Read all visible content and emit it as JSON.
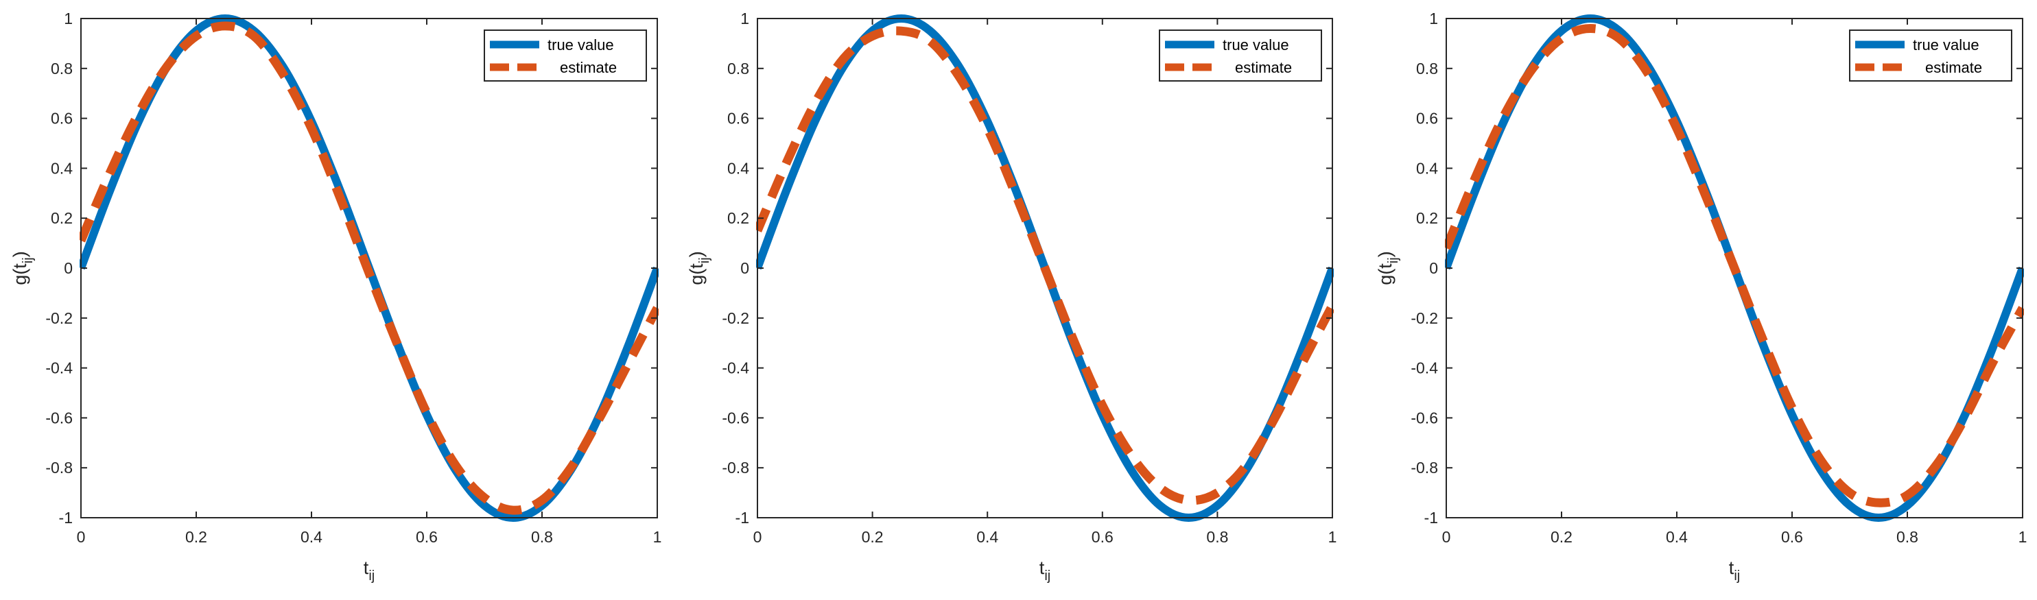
{
  "chart_data": [
    {
      "type": "line",
      "xlabel": {
        "base": "t",
        "sub": "ij"
      },
      "ylabel": {
        "base": "g(t",
        "sub": "ij",
        "close": ")"
      },
      "xlim": [
        0,
        1
      ],
      "ylim": [
        -1,
        1
      ],
      "xticks": [
        0,
        0.2,
        0.4,
        0.6,
        0.8,
        1
      ],
      "yticks": [
        -1,
        -0.8,
        -0.6,
        -0.4,
        -0.2,
        0,
        0.2,
        0.4,
        0.6,
        0.8,
        1
      ],
      "xtick_labels": [
        "0",
        "0.2",
        "0.4",
        "0.6",
        "0.8",
        "1"
      ],
      "ytick_labels": [
        "-1",
        "-0.8",
        "-0.6",
        "-0.4",
        "-0.2",
        "0",
        "0.2",
        "0.4",
        "0.6",
        "0.8",
        "1"
      ],
      "grid": false,
      "legend": "top-right",
      "series": [
        {
          "name": "true value",
          "color": "#0072BD",
          "style": "solid",
          "x": [
            0,
            0.05,
            0.1,
            0.15,
            0.2,
            0.25,
            0.3,
            0.35,
            0.4,
            0.45,
            0.5,
            0.55,
            0.6,
            0.65,
            0.7,
            0.75,
            0.8,
            0.85,
            0.9,
            0.95,
            1
          ],
          "y": [
            0,
            0.309,
            0.588,
            0.809,
            0.951,
            1,
            0.951,
            0.809,
            0.588,
            0.309,
            0,
            -0.309,
            -0.588,
            -0.809,
            -0.951,
            -1,
            -0.951,
            -0.809,
            -0.588,
            -0.309,
            0
          ]
        },
        {
          "name": "estimate",
          "color": "#D95319",
          "style": "dashed",
          "x": [
            0,
            0.05,
            0.1,
            0.15,
            0.2,
            0.25,
            0.3,
            0.35,
            0.4,
            0.45,
            0.5,
            0.55,
            0.6,
            0.65,
            0.7,
            0.75,
            0.8,
            0.85,
            0.9,
            0.95,
            1
          ],
          "y": [
            0.11,
            0.38,
            0.62,
            0.81,
            0.93,
            0.97,
            0.93,
            0.78,
            0.56,
            0.28,
            -0.02,
            -0.31,
            -0.58,
            -0.79,
            -0.92,
            -0.97,
            -0.93,
            -0.8,
            -0.6,
            -0.38,
            -0.16
          ]
        }
      ]
    },
    {
      "type": "line",
      "xlabel": {
        "base": "t",
        "sub": "ij"
      },
      "ylabel": {
        "base": "g(t",
        "sub": "ij",
        "close": ")"
      },
      "xlim": [
        0,
        1
      ],
      "ylim": [
        -1,
        1
      ],
      "xticks": [
        0,
        0.2,
        0.4,
        0.6,
        0.8,
        1
      ],
      "yticks": [
        -1,
        -0.8,
        -0.6,
        -0.4,
        -0.2,
        0,
        0.2,
        0.4,
        0.6,
        0.8,
        1
      ],
      "xtick_labels": [
        "0",
        "0.2",
        "0.4",
        "0.6",
        "0.8",
        "1"
      ],
      "ytick_labels": [
        "-1",
        "-0.8",
        "-0.6",
        "-0.4",
        "-0.2",
        "0",
        "0.2",
        "0.4",
        "0.6",
        "0.8",
        "1"
      ],
      "grid": false,
      "legend": "top-right",
      "series": [
        {
          "name": "true value",
          "color": "#0072BD",
          "style": "solid",
          "x": [
            0,
            0.05,
            0.1,
            0.15,
            0.2,
            0.25,
            0.3,
            0.35,
            0.4,
            0.45,
            0.5,
            0.55,
            0.6,
            0.65,
            0.7,
            0.75,
            0.8,
            0.85,
            0.9,
            0.95,
            1
          ],
          "y": [
            0,
            0.309,
            0.588,
            0.809,
            0.951,
            1,
            0.951,
            0.809,
            0.588,
            0.309,
            0,
            -0.309,
            -0.588,
            -0.809,
            -0.951,
            -1,
            -0.951,
            -0.809,
            -0.588,
            -0.309,
            0
          ]
        },
        {
          "name": "estimate",
          "color": "#D95319",
          "style": "dashed",
          "x": [
            0,
            0.05,
            0.1,
            0.15,
            0.2,
            0.25,
            0.3,
            0.35,
            0.4,
            0.45,
            0.5,
            0.55,
            0.6,
            0.65,
            0.7,
            0.75,
            0.8,
            0.85,
            0.9,
            0.95,
            1
          ],
          "y": [
            0.15,
            0.42,
            0.66,
            0.84,
            0.93,
            0.95,
            0.91,
            0.77,
            0.56,
            0.29,
            0,
            -0.29,
            -0.55,
            -0.75,
            -0.88,
            -0.93,
            -0.9,
            -0.79,
            -0.6,
            -0.37,
            -0.15
          ]
        }
      ]
    },
    {
      "type": "line",
      "xlabel": {
        "base": "t",
        "sub": "ij"
      },
      "ylabel": {
        "base": "g(t",
        "sub": "ij",
        "close": ")"
      },
      "xlim": [
        0,
        1
      ],
      "ylim": [
        -1,
        1
      ],
      "xticks": [
        0,
        0.2,
        0.4,
        0.6,
        0.8,
        1
      ],
      "yticks": [
        -1,
        -0.8,
        -0.6,
        -0.4,
        -0.2,
        0,
        0.2,
        0.4,
        0.6,
        0.8,
        1
      ],
      "xtick_labels": [
        "0",
        "0.2",
        "0.4",
        "0.6",
        "0.8",
        "1"
      ],
      "ytick_labels": [
        "-1",
        "-0.8",
        "-0.6",
        "-0.4",
        "-0.2",
        "0",
        "0.2",
        "0.4",
        "0.6",
        "0.8",
        "1"
      ],
      "grid": false,
      "legend": "top-right",
      "series": [
        {
          "name": "true value",
          "color": "#0072BD",
          "style": "solid",
          "x": [
            0,
            0.05,
            0.1,
            0.15,
            0.2,
            0.25,
            0.3,
            0.35,
            0.4,
            0.45,
            0.5,
            0.55,
            0.6,
            0.65,
            0.7,
            0.75,
            0.8,
            0.85,
            0.9,
            0.95,
            1
          ],
          "y": [
            0,
            0.309,
            0.588,
            0.809,
            0.951,
            1,
            0.951,
            0.809,
            0.588,
            0.309,
            0,
            -0.309,
            -0.588,
            -0.809,
            -0.951,
            -1,
            -0.951,
            -0.809,
            -0.588,
            -0.309,
            0
          ]
        },
        {
          "name": "estimate",
          "color": "#D95319",
          "style": "dashed",
          "x": [
            0,
            0.05,
            0.1,
            0.15,
            0.2,
            0.25,
            0.3,
            0.35,
            0.4,
            0.45,
            0.5,
            0.55,
            0.6,
            0.65,
            0.7,
            0.75,
            0.8,
            0.85,
            0.9,
            0.95,
            1
          ],
          "y": [
            0.08,
            0.36,
            0.61,
            0.8,
            0.92,
            0.96,
            0.92,
            0.78,
            0.56,
            0.29,
            0,
            -0.29,
            -0.56,
            -0.77,
            -0.9,
            -0.94,
            -0.91,
            -0.79,
            -0.6,
            -0.37,
            -0.16
          ]
        }
      ]
    }
  ]
}
